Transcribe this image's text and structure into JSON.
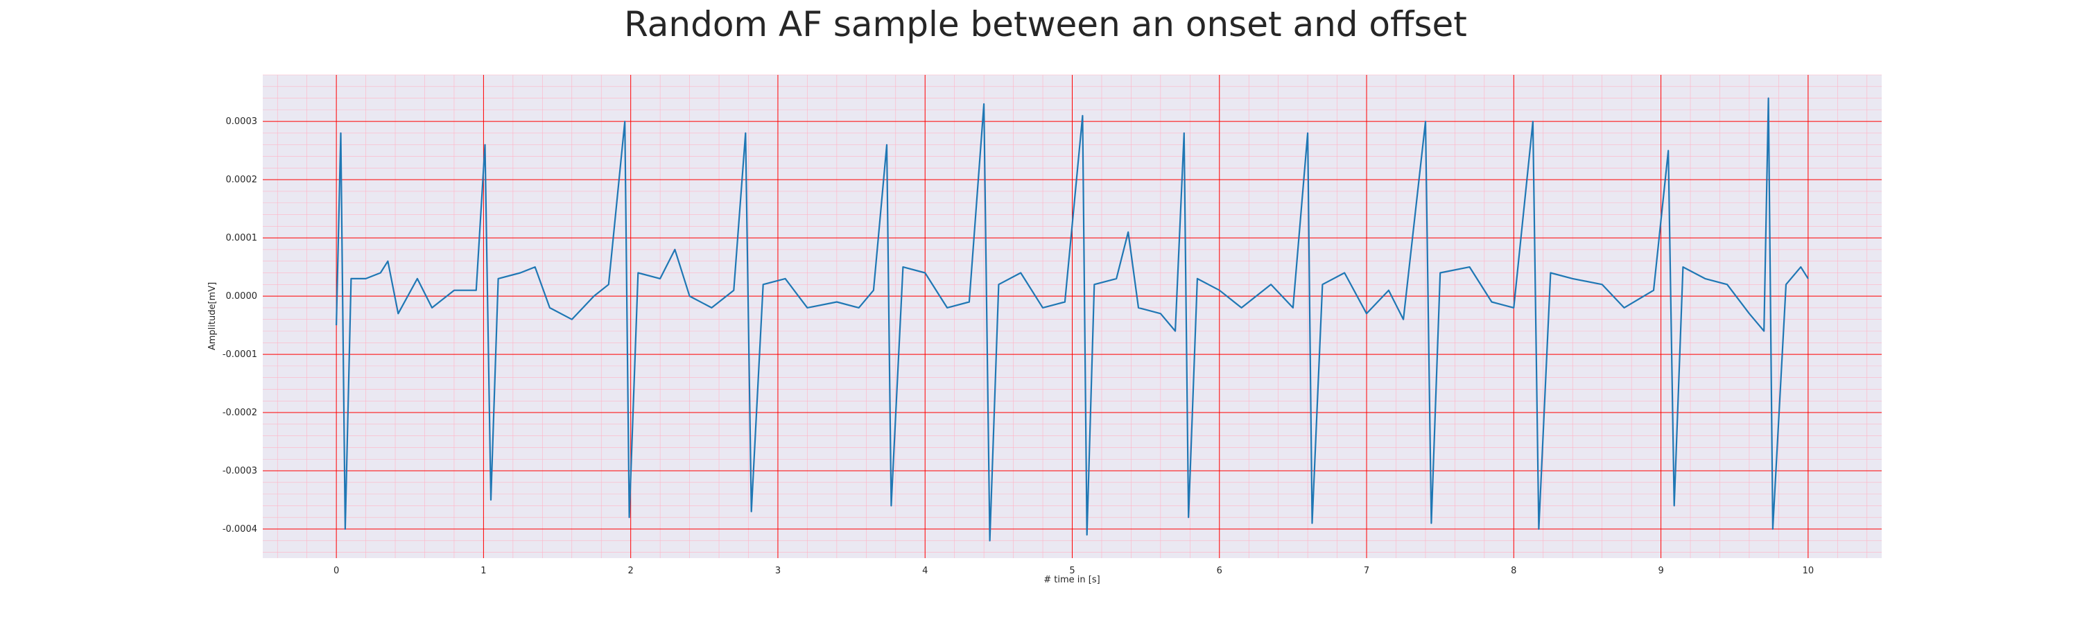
{
  "chart_data": {
    "type": "line",
    "title": "Random AF sample between an onset and offset",
    "xlabel": "# time in [s]",
    "ylabel": "Amplitude[mV]",
    "xlim": [
      -0.5,
      10.5
    ],
    "ylim": [
      -0.00045,
      0.00038
    ],
    "xticks": [
      0,
      1,
      2,
      3,
      4,
      5,
      6,
      7,
      8,
      9,
      10
    ],
    "xtick_labels": [
      "0",
      "1",
      "2",
      "3",
      "4",
      "5",
      "6",
      "7",
      "8",
      "9",
      "10"
    ],
    "yticks": [
      0.0003,
      0.0002,
      0.0001,
      0.0,
      -0.0001,
      -0.0002,
      -0.0003,
      -0.0004
    ],
    "ytick_labels": [
      "0.0003",
      "0.0002",
      "0.0001",
      "0.0000",
      "-0.0001",
      "-0.0002",
      "-0.0003",
      "-0.0004"
    ],
    "grid": "major and minor",
    "colors": {
      "background": "#eae8f2",
      "major_grid": "#ff0000",
      "minor_grid": "#ffb3c6",
      "line": "#1f77b4"
    },
    "series": [
      {
        "values": [
          [
            0.0,
            -5e-05
          ],
          [
            0.03,
            0.00028
          ],
          [
            0.06,
            -0.0004
          ],
          [
            0.1,
            3e-05
          ],
          [
            0.2,
            3e-05
          ],
          [
            0.3,
            4e-05
          ],
          [
            0.35,
            6e-05
          ],
          [
            0.42,
            -3e-05
          ],
          [
            0.55,
            3e-05
          ],
          [
            0.65,
            -2e-05
          ],
          [
            0.8,
            1e-05
          ],
          [
            0.95,
            1e-05
          ],
          [
            1.01,
            0.00026
          ],
          [
            1.05,
            -0.00035
          ],
          [
            1.1,
            3e-05
          ],
          [
            1.25,
            4e-05
          ],
          [
            1.35,
            5e-05
          ],
          [
            1.45,
            -2e-05
          ],
          [
            1.6,
            -4e-05
          ],
          [
            1.75,
            0.0
          ],
          [
            1.85,
            2e-05
          ],
          [
            1.96,
            0.0003
          ],
          [
            1.99,
            -0.00038
          ],
          [
            2.05,
            4e-05
          ],
          [
            2.2,
            3e-05
          ],
          [
            2.3,
            8e-05
          ],
          [
            2.4,
            0.0
          ],
          [
            2.55,
            -2e-05
          ],
          [
            2.7,
            1e-05
          ],
          [
            2.78,
            0.00028
          ],
          [
            2.82,
            -0.00037
          ],
          [
            2.9,
            2e-05
          ],
          [
            3.05,
            3e-05
          ],
          [
            3.2,
            -2e-05
          ],
          [
            3.4,
            -1e-05
          ],
          [
            3.55,
            -2e-05
          ],
          [
            3.65,
            1e-05
          ],
          [
            3.74,
            0.00026
          ],
          [
            3.77,
            -0.00036
          ],
          [
            3.85,
            5e-05
          ],
          [
            4.0,
            4e-05
          ],
          [
            4.15,
            -2e-05
          ],
          [
            4.3,
            -1e-05
          ],
          [
            4.4,
            0.00033
          ],
          [
            4.44,
            -0.00042
          ],
          [
            4.5,
            2e-05
          ],
          [
            4.65,
            4e-05
          ],
          [
            4.8,
            -2e-05
          ],
          [
            4.95,
            -1e-05
          ],
          [
            5.07,
            0.00031
          ],
          [
            5.1,
            -0.00041
          ],
          [
            5.15,
            2e-05
          ],
          [
            5.3,
            3e-05
          ],
          [
            5.38,
            0.00011
          ],
          [
            5.45,
            -2e-05
          ],
          [
            5.6,
            -3e-05
          ],
          [
            5.7,
            -6e-05
          ],
          [
            5.76,
            0.00028
          ],
          [
            5.79,
            -0.00038
          ],
          [
            5.85,
            3e-05
          ],
          [
            6.0,
            1e-05
          ],
          [
            6.15,
            -2e-05
          ],
          [
            6.35,
            2e-05
          ],
          [
            6.5,
            -2e-05
          ],
          [
            6.6,
            0.00028
          ],
          [
            6.63,
            -0.00039
          ],
          [
            6.7,
            2e-05
          ],
          [
            6.85,
            4e-05
          ],
          [
            7.0,
            -3e-05
          ],
          [
            7.15,
            1e-05
          ],
          [
            7.25,
            -4e-05
          ],
          [
            7.4,
            0.0003
          ],
          [
            7.44,
            -0.00039
          ],
          [
            7.5,
            4e-05
          ],
          [
            7.7,
            5e-05
          ],
          [
            7.85,
            -1e-05
          ],
          [
            8.0,
            -2e-05
          ],
          [
            8.13,
            0.0003
          ],
          [
            8.17,
            -0.0004
          ],
          [
            8.25,
            4e-05
          ],
          [
            8.4,
            3e-05
          ],
          [
            8.6,
            2e-05
          ],
          [
            8.75,
            -2e-05
          ],
          [
            8.95,
            1e-05
          ],
          [
            9.05,
            0.00025
          ],
          [
            9.09,
            -0.00036
          ],
          [
            9.15,
            5e-05
          ],
          [
            9.3,
            3e-05
          ],
          [
            9.45,
            2e-05
          ],
          [
            9.6,
            -3e-05
          ],
          [
            9.7,
            -6e-05
          ],
          [
            9.73,
            0.00034
          ],
          [
            9.76,
            -0.0004
          ],
          [
            9.85,
            2e-05
          ],
          [
            9.95,
            5e-05
          ],
          [
            10.0,
            3e-05
          ]
        ]
      }
    ]
  }
}
